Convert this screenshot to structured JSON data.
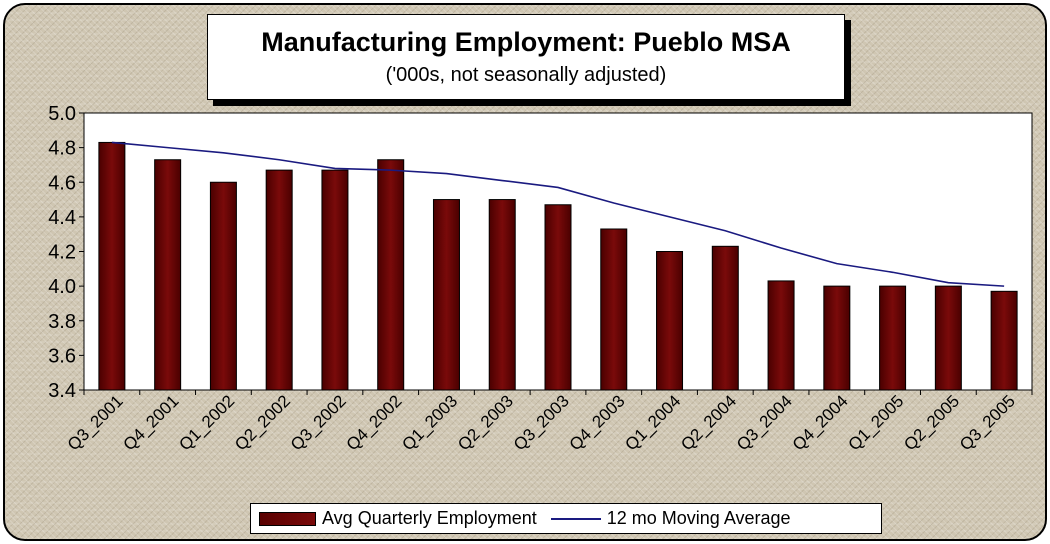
{
  "chart_data": {
    "type": "bar",
    "title": "Manufacturing Employment: Pueblo MSA",
    "subtitle": "('000s, not seasonally adjusted)",
    "categories": [
      "Q3_2001",
      "Q4_2001",
      "Q1_2002",
      "Q2_2002",
      "Q3_2002",
      "Q4_2002",
      "Q1_2003",
      "Q2_2003",
      "Q3_2003",
      "Q4_2003",
      "Q1_2004",
      "Q2_2004",
      "Q3_2004",
      "Q4_2004",
      "Q1_2005",
      "Q2_2005",
      "Q3_2005"
    ],
    "series": [
      {
        "name": "Avg  Quarterly Employment",
        "type": "bar",
        "color": "#6b0000",
        "values": [
          4.83,
          4.73,
          4.6,
          4.67,
          4.67,
          4.73,
          4.5,
          4.5,
          4.47,
          4.33,
          4.2,
          4.23,
          4.03,
          4.0,
          4.0,
          4.0,
          3.97
        ]
      },
      {
        "name": "12 mo Moving Average",
        "type": "line",
        "color": "#1a1a80",
        "values": [
          4.83,
          4.8,
          4.77,
          4.73,
          4.68,
          4.67,
          4.65,
          4.61,
          4.57,
          4.48,
          4.4,
          4.32,
          4.22,
          4.13,
          4.08,
          4.02,
          4.0
        ]
      }
    ],
    "yticks": [
      "5.0",
      "4.8",
      "4.6",
      "4.4",
      "4.2",
      "4.0",
      "3.8",
      "3.6",
      "3.4"
    ],
    "ylim": [
      3.4,
      5.0
    ],
    "grid": false,
    "legend_position": "bottom"
  }
}
